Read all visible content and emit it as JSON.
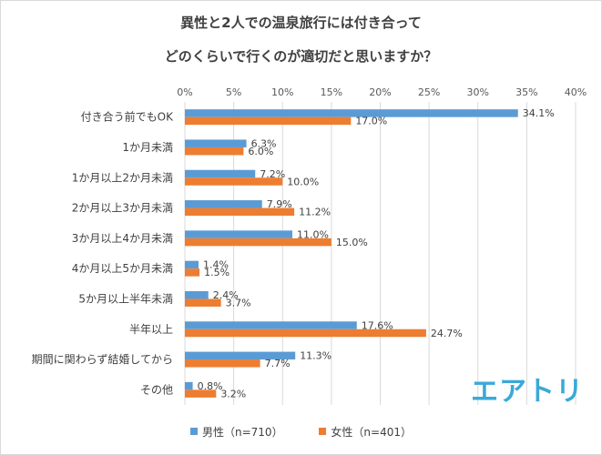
{
  "chart_data": {
    "type": "bar",
    "orientation": "horizontal",
    "title_line1": "異性と2人での温泉旅行には付き合って",
    "title_line2": "どのくらいで行くのが適切だと思いますか？",
    "categories": [
      "付き合う前でもOK",
      "1か月未満",
      "1か月以上2か月未満",
      "2か月以上3か月未満",
      "3か月以上4か月未満",
      "4か月以上5か月未満",
      "5か月以上半年未満",
      "半年以上",
      "期間に関わらず結婚してから",
      "その他"
    ],
    "series": [
      {
        "name": "男性（n=710）",
        "color": "#5b9bd5",
        "values": [
          34.1,
          6.3,
          7.2,
          7.9,
          11.0,
          1.4,
          2.4,
          17.6,
          11.3,
          0.8
        ],
        "labels": [
          "34.1%",
          "6.3%",
          "7.2%",
          "7.9%",
          "11.0%",
          "1.4%",
          "2.4%",
          "17.6%",
          "11.3%",
          "0.8%"
        ]
      },
      {
        "name": "女性（n=401）",
        "color": "#ed7d31",
        "values": [
          17.0,
          6.0,
          10.0,
          11.2,
          15.0,
          1.5,
          3.7,
          24.7,
          7.7,
          3.2
        ],
        "labels": [
          "17.0%",
          "6.0%",
          "10.0%",
          "11.2%",
          "15.0%",
          "1.5%",
          "3.7%",
          "24.7%",
          "7.7%",
          "3.2%"
        ]
      }
    ],
    "xlim": [
      0,
      40
    ],
    "ticks": [
      0,
      5,
      10,
      15,
      20,
      25,
      30,
      35,
      40
    ],
    "tick_labels": [
      "0%",
      "5%",
      "10%",
      "15%",
      "20%",
      "25%",
      "30%",
      "35%",
      "40%"
    ],
    "grid": true,
    "legend_position": "bottom"
  },
  "logo_text": "エアトリ"
}
